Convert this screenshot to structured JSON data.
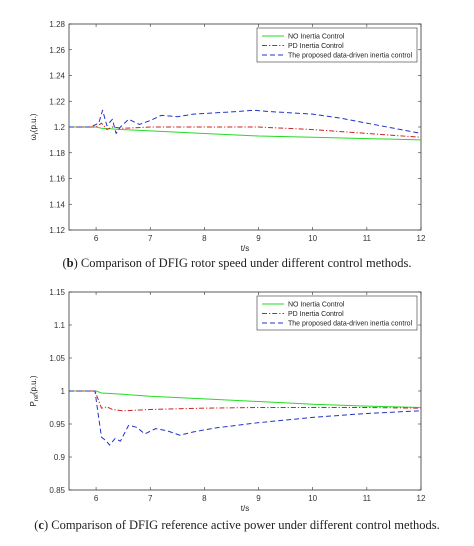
{
  "captions": [
    {
      "letter": "b",
      "text": "Comparison of DFIG rotor speed under different control methods."
    },
    {
      "letter": "c",
      "text": "Comparison of DFIG reference active power under different control methods."
    }
  ],
  "chart_data": [
    {
      "type": "line",
      "title": "",
      "xlabel": "t/s",
      "ylabel": "ω_r(p.u.)",
      "xlim": [
        5.5,
        12
      ],
      "ylim": [
        1.12,
        1.28
      ],
      "xticks": [
        6,
        7,
        8,
        9,
        10,
        11,
        12
      ],
      "yticks": [
        1.12,
        1.14,
        1.16,
        1.18,
        1.2,
        1.22,
        1.24,
        1.26,
        1.28
      ],
      "legend_position": "top-right",
      "series": [
        {
          "name": "NO Inertia Control",
          "color": "#22dd22",
          "dash": "solid",
          "points": [
            [
              5.5,
              1.2
            ],
            [
              6,
              1.2
            ],
            [
              6.1,
              1.199
            ],
            [
              6.5,
              1.198
            ],
            [
              7,
              1.197
            ],
            [
              8,
              1.195
            ],
            [
              9,
              1.193
            ],
            [
              10,
              1.192
            ],
            [
              11,
              1.191
            ],
            [
              12,
              1.19
            ]
          ]
        },
        {
          "name": "PD Inertia Control",
          "color": "#cc2222",
          "dash": "dashdot",
          "points": [
            [
              5.5,
              1.2
            ],
            [
              6,
              1.2
            ],
            [
              6.1,
              1.203
            ],
            [
              6.2,
              1.198
            ],
            [
              6.3,
              1.2
            ],
            [
              6.5,
              1.199
            ],
            [
              7,
              1.2
            ],
            [
              8,
              1.2
            ],
            [
              9,
              1.2
            ],
            [
              10,
              1.198
            ],
            [
              11,
              1.195
            ],
            [
              12,
              1.192
            ]
          ]
        },
        {
          "name": "The proposed data-driven inertia control",
          "color": "#2233cc",
          "dash": "dash",
          "points": [
            [
              5.5,
              1.2
            ],
            [
              5.9,
              1.2
            ],
            [
              6.05,
              1.203
            ],
            [
              6.12,
              1.213
            ],
            [
              6.2,
              1.201
            ],
            [
              6.3,
              1.206
            ],
            [
              6.37,
              1.195
            ],
            [
              6.45,
              1.2
            ],
            [
              6.6,
              1.206
            ],
            [
              6.8,
              1.202
            ],
            [
              7,
              1.205
            ],
            [
              7.2,
              1.209
            ],
            [
              7.5,
              1.208
            ],
            [
              7.8,
              1.21
            ],
            [
              8.2,
              1.211
            ],
            [
              8.6,
              1.212
            ],
            [
              8.9,
              1.213
            ],
            [
              9.2,
              1.212
            ],
            [
              9.6,
              1.211
            ],
            [
              10,
              1.21
            ],
            [
              10.5,
              1.207
            ],
            [
              11,
              1.203
            ],
            [
              11.5,
              1.199
            ],
            [
              12,
              1.195
            ]
          ]
        }
      ]
    },
    {
      "type": "line",
      "title": "",
      "xlabel": "t/s",
      "ylabel": "P_ref(p.u.)",
      "xlim": [
        5.5,
        12
      ],
      "ylim": [
        0.85,
        1.15
      ],
      "xticks": [
        6,
        7,
        8,
        9,
        10,
        11,
        12
      ],
      "yticks": [
        0.85,
        0.9,
        0.95,
        1,
        1.05,
        1.1,
        1.15
      ],
      "legend_position": "top-right",
      "series": [
        {
          "name": "NO Inertia Control",
          "color": "#22dd22",
          "dash": "solid",
          "points": [
            [
              5.5,
              1.0
            ],
            [
              6,
              1.0
            ],
            [
              6.1,
              0.997
            ],
            [
              6.5,
              0.995
            ],
            [
              7,
              0.992
            ],
            [
              8,
              0.988
            ],
            [
              9,
              0.984
            ],
            [
              10,
              0.98
            ],
            [
              11,
              0.977
            ],
            [
              12,
              0.975
            ]
          ]
        },
        {
          "name": "PD Inertia Control",
          "color": "#cc2222",
          "dash": "dashdot",
          "points": [
            [
              5.5,
              1.0
            ],
            [
              5.98,
              1.0
            ],
            [
              6.05,
              0.985
            ],
            [
              6.1,
              0.974
            ],
            [
              6.2,
              0.976
            ],
            [
              6.3,
              0.972
            ],
            [
              6.5,
              0.97
            ],
            [
              7,
              0.972
            ],
            [
              8,
              0.974
            ],
            [
              9,
              0.975
            ],
            [
              10,
              0.975
            ],
            [
              11,
              0.975
            ],
            [
              12,
              0.974
            ]
          ]
        },
        {
          "name": "The proposed data-driven inertia control",
          "color": "#2233cc",
          "dash": "dash",
          "points": [
            [
              5.5,
              1.0
            ],
            [
              5.98,
              1.0
            ],
            [
              6.03,
              0.97
            ],
            [
              6.1,
              0.93
            ],
            [
              6.18,
              0.925
            ],
            [
              6.25,
              0.918
            ],
            [
              6.35,
              0.928
            ],
            [
              6.45,
              0.924
            ],
            [
              6.6,
              0.948
            ],
            [
              6.75,
              0.945
            ],
            [
              6.9,
              0.935
            ],
            [
              7.1,
              0.943
            ],
            [
              7.3,
              0.94
            ],
            [
              7.55,
              0.933
            ],
            [
              7.8,
              0.938
            ],
            [
              8.2,
              0.944
            ],
            [
              8.6,
              0.948
            ],
            [
              9,
              0.952
            ],
            [
              9.5,
              0.956
            ],
            [
              10,
              0.96
            ],
            [
              10.5,
              0.963
            ],
            [
              11,
              0.966
            ],
            [
              11.5,
              0.968
            ],
            [
              12,
              0.97
            ]
          ]
        }
      ]
    }
  ]
}
